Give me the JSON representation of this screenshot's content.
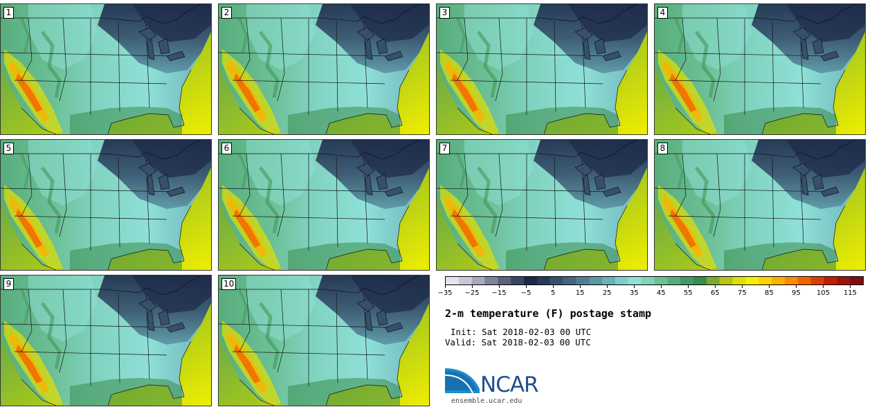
{
  "panels": [
    {
      "number": "1"
    },
    {
      "number": "2"
    },
    {
      "number": "3"
    },
    {
      "number": "4"
    },
    {
      "number": "5"
    },
    {
      "number": "6"
    },
    {
      "number": "7"
    },
    {
      "number": "8"
    },
    {
      "number": "9"
    },
    {
      "number": "10"
    }
  ],
  "colorbar": {
    "min": -35,
    "max": 120,
    "step": 5,
    "tick_labels": [
      "-35",
      "-25",
      "-15",
      "-5",
      "5",
      "15",
      "25",
      "35",
      "45",
      "55",
      "65",
      "75",
      "85",
      "95",
      "105",
      "115"
    ],
    "colors": [
      "#e4e4ec",
      "#c8c8d6",
      "#a6a8bc",
      "#7e839c",
      "#5a627e",
      "#3a4562",
      "#1c2948",
      "#283a58",
      "#36506c",
      "#446780",
      "#4f7e92",
      "#5c96a4",
      "#6cb0b8",
      "#80cccc",
      "#8fe0d8",
      "#80d3b4",
      "#6cc096",
      "#58ad7c",
      "#459966",
      "#3a8c4a",
      "#7aa830",
      "#b4c418",
      "#dede08",
      "#f4f000",
      "#fcd200",
      "#fcb000",
      "#f88c00",
      "#f06400",
      "#dc3c00",
      "#c02000",
      "#a01408",
      "#7c1010"
    ]
  },
  "title": "2-m temperature (F) postage stamp",
  "init": "Init: Sat 2018-02-03 00 UTC",
  "valid": "Valid: Sat 2018-02-03 00 UTC",
  "logo": {
    "text": "NCAR",
    "url": "ensemble.ucar.edu",
    "color": "#1f4f8f",
    "swoosh": "#1a8ccd"
  }
}
